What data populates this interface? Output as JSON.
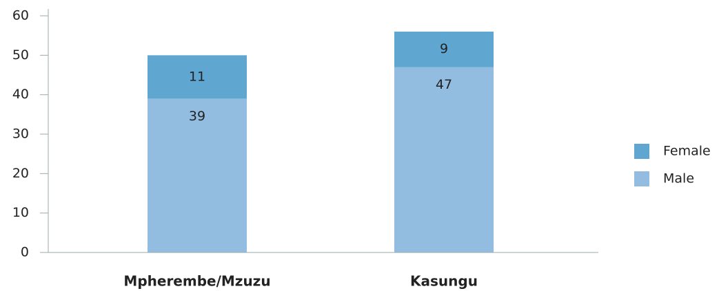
{
  "chart_data": {
    "type": "stacked_bar",
    "categories": [
      "Mpherembe/Mzuzu",
      "Kasungu"
    ],
    "series": [
      {
        "name": "Male",
        "color": "#92bde0",
        "values": [
          39,
          47
        ]
      },
      {
        "name": "Female",
        "color": "#5fa6d0",
        "values": [
          11,
          9
        ]
      }
    ],
    "ylim": [
      0,
      60
    ],
    "yticks": [
      0,
      10,
      20,
      30,
      40,
      50,
      60
    ],
    "legend": "right"
  }
}
